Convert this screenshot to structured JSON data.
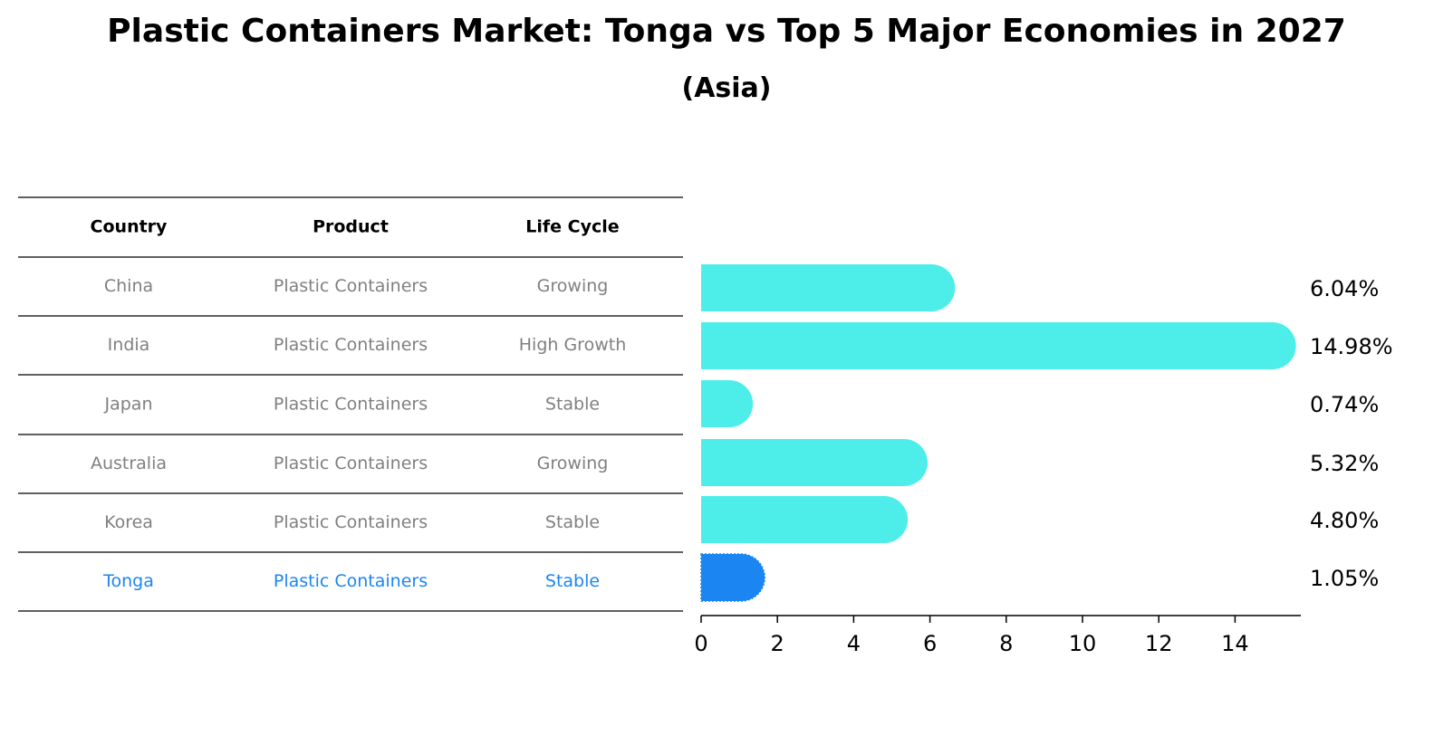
{
  "title": "Plastic Containers Market: Tonga vs Top 5 Major Economies in 2027",
  "subtitle": "(Asia)",
  "colors": {
    "bar": "#4deeea",
    "highlight_bar": "#1b86f2",
    "highlight_text": "#1b86f2",
    "row_text": "#808080"
  },
  "table": {
    "headers": [
      "Country",
      "Product",
      "Life Cycle"
    ],
    "rows": [
      {
        "country": "China",
        "product": "Plastic Containers",
        "life_cycle": "Growing"
      },
      {
        "country": "India",
        "product": "Plastic Containers",
        "life_cycle": "High Growth"
      },
      {
        "country": "Japan",
        "product": "Plastic Containers",
        "life_cycle": "Stable"
      },
      {
        "country": "Australia",
        "product": "Plastic Containers",
        "life_cycle": "Growing"
      },
      {
        "country": "Korea",
        "product": "Plastic Containers",
        "life_cycle": "Stable"
      },
      {
        "country": "Tonga",
        "product": "Plastic Containers",
        "life_cycle": "Stable",
        "highlight": true
      }
    ]
  },
  "chart_data": {
    "type": "bar",
    "orientation": "horizontal",
    "categories": [
      "China",
      "India",
      "Japan",
      "Australia",
      "Korea",
      "Tonga"
    ],
    "values": [
      6.04,
      14.98,
      0.74,
      5.32,
      4.8,
      1.05
    ],
    "labels": [
      "6.04%",
      "14.98%",
      "0.74%",
      "5.32%",
      "4.80%",
      "1.05%"
    ],
    "highlight_index": 5,
    "xlim": [
      0,
      15.7
    ],
    "xticks": [
      0,
      2,
      4,
      6,
      8,
      10,
      12,
      14
    ],
    "xlabel": "",
    "ylabel": "",
    "grid": false
  }
}
